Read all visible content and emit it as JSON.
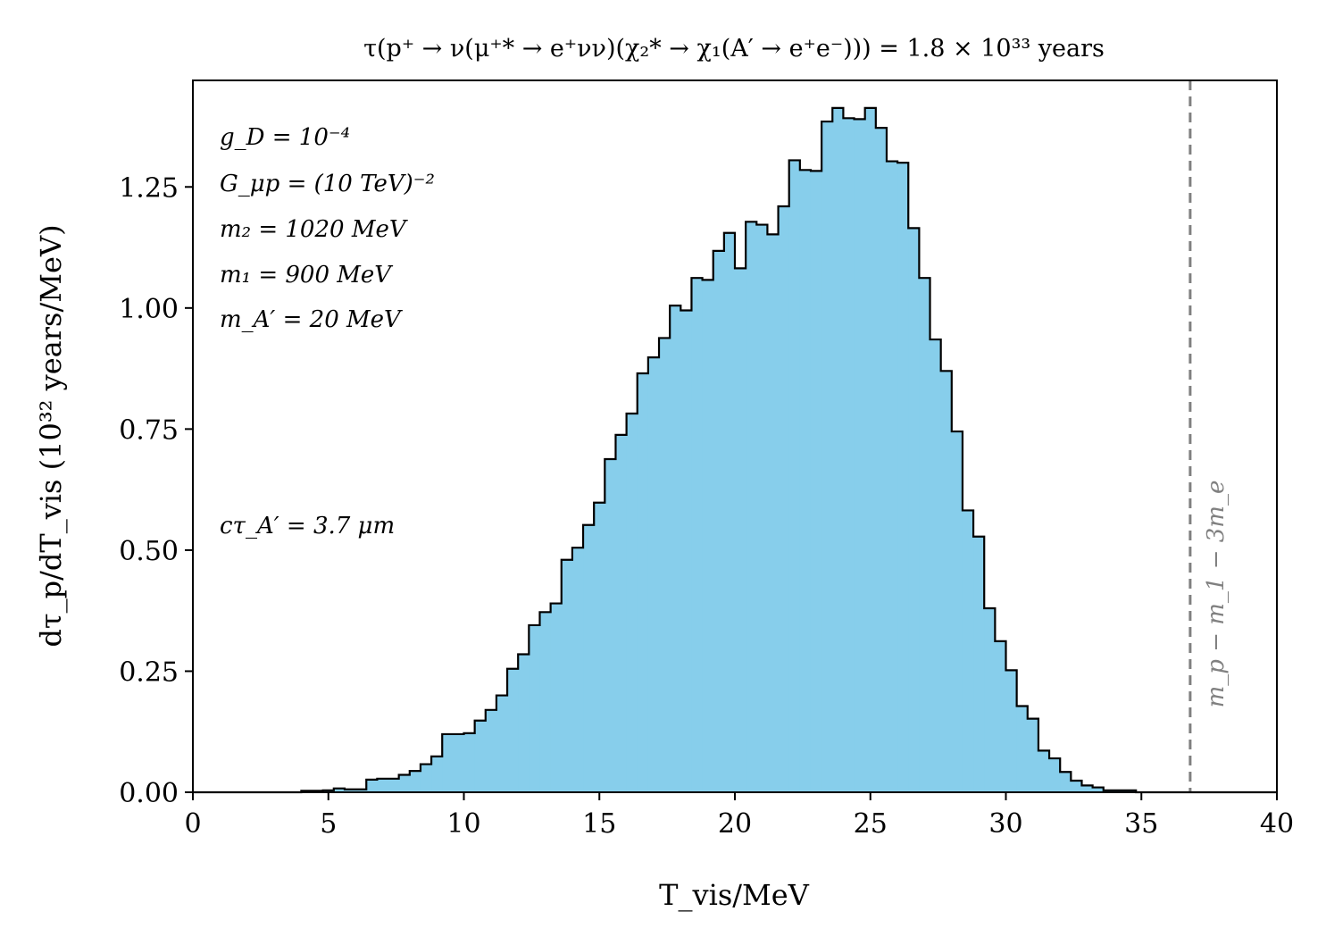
{
  "chart_data": {
    "type": "histogram",
    "title": "τ(p⁺ → ν(μ⁺* → e⁺νν)(χ₂* → χ₁(A′ → e⁺e⁻))) = 1.8 × 10³³ years",
    "xlabel": "T_vis/MeV",
    "ylabel": "dτ_p/dT_vis (10³² years/MeV)",
    "xlim": [
      0,
      40
    ],
    "ylim": [
      0,
      1.47
    ],
    "xticks": [
      0,
      5,
      10,
      15,
      20,
      25,
      30,
      35,
      40
    ],
    "xtick_labels": [
      "0",
      "5",
      "10",
      "15",
      "20",
      "25",
      "30",
      "35",
      "40"
    ],
    "yticks": [
      0,
      0.25,
      0.5,
      0.75,
      1.0,
      1.25
    ],
    "ytick_labels": [
      "0.00",
      "0.25",
      "0.50",
      "0.75",
      "1.00",
      "1.25"
    ],
    "fill_color": "#87ceeb",
    "edge_color": "#000000",
    "bin_start": 4.0,
    "bin_width": 0.4,
    "values": [
      0.003,
      0.003,
      0.004,
      0.008,
      0.006,
      0.006,
      0.026,
      0.028,
      0.028,
      0.036,
      0.044,
      0.058,
      0.074,
      0.12,
      0.12,
      0.122,
      0.148,
      0.17,
      0.2,
      0.255,
      0.285,
      0.345,
      0.372,
      0.39,
      0.48,
      0.505,
      0.552,
      0.598,
      0.688,
      0.738,
      0.782,
      0.865,
      0.898,
      0.938,
      1.005,
      0.995,
      1.062,
      1.058,
      1.118,
      1.155,
      1.082,
      1.178,
      1.172,
      1.152,
      1.21,
      1.305,
      1.285,
      1.283,
      1.385,
      1.413,
      1.392,
      1.39,
      1.413,
      1.372,
      1.303,
      1.3,
      1.165,
      1.062,
      0.935,
      0.87,
      0.745,
      0.582,
      0.528,
      0.38,
      0.312,
      0.252,
      0.178,
      0.152,
      0.086,
      0.07,
      0.042,
      0.024,
      0.014,
      0.01,
      0.004,
      0.004,
      0.004
    ],
    "vline": {
      "x": 36.8,
      "color": "#808080",
      "style": "dashed",
      "label": "m_p − m_1 − 3m_e"
    },
    "annotations": [
      "g_D = 10⁻⁴",
      "G_μp = (10 TeV)⁻²",
      "m₂ = 1020 MeV",
      "m₁ = 900 MeV",
      "m_A′ = 20 MeV",
      "cτ_A′ = 3.7 μm"
    ]
  }
}
